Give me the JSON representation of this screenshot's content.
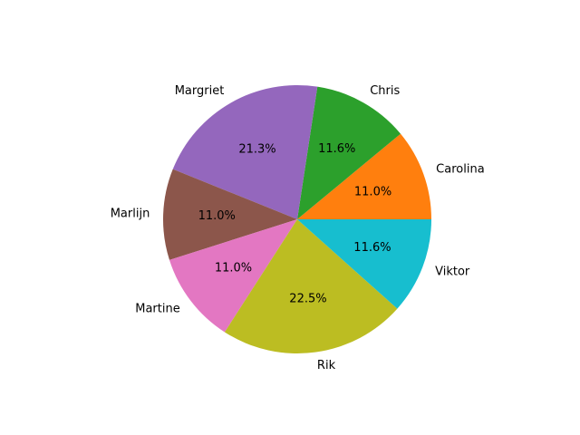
{
  "chart_data": {
    "type": "pie",
    "title": "",
    "categories": [
      "Carolina",
      "Chris",
      "Margriet",
      "Marlijn",
      "Martine",
      "Rik",
      "Viktor"
    ],
    "values": [
      11.0,
      11.6,
      21.3,
      11.0,
      11.0,
      22.5,
      11.6
    ],
    "percent_labels": [
      "11.0%",
      "11.6%",
      "21.3%",
      "11.0%",
      "11.0%",
      "22.5%",
      "11.6%"
    ],
    "colors": [
      "#ff7f0e",
      "#2ca02c",
      "#9467bd",
      "#8c564b",
      "#e377c2",
      "#bcbd22",
      "#17becf"
    ],
    "start_angle_deg": 0,
    "direction": "counterclockwise",
    "legend": "none",
    "grid": false
  }
}
